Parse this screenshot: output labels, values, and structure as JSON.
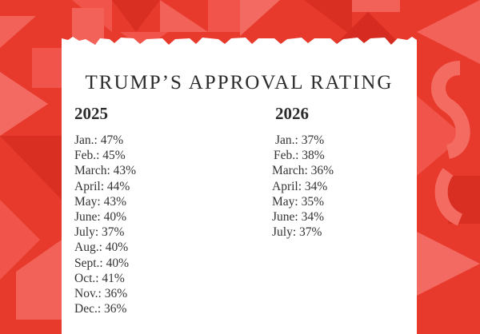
{
  "colors": {
    "background": "#e83a2c",
    "paper": "#ffffff",
    "text": "#2b2b2b"
  },
  "title": "TRUMP’S APPROVAL RATING",
  "columns": [
    {
      "year": "2025",
      "entries": [
        "Jan.: 47%",
        "Feb.: 45%",
        "March: 43%",
        "April: 44%",
        "May: 43%",
        "June: 40%",
        "July: 37%",
        "Aug.: 40%",
        "Sept.: 40%",
        "Oct.: 41%",
        "Nov.: 36%",
        "Dec.: 36%"
      ]
    },
    {
      "year": "2026",
      "entries": [
        "Jan.: 37%",
        "Feb.: 38%",
        "March: 36%",
        "April: 34%",
        "May: 35%",
        "June: 34%",
        "July: 37%"
      ]
    }
  ]
}
